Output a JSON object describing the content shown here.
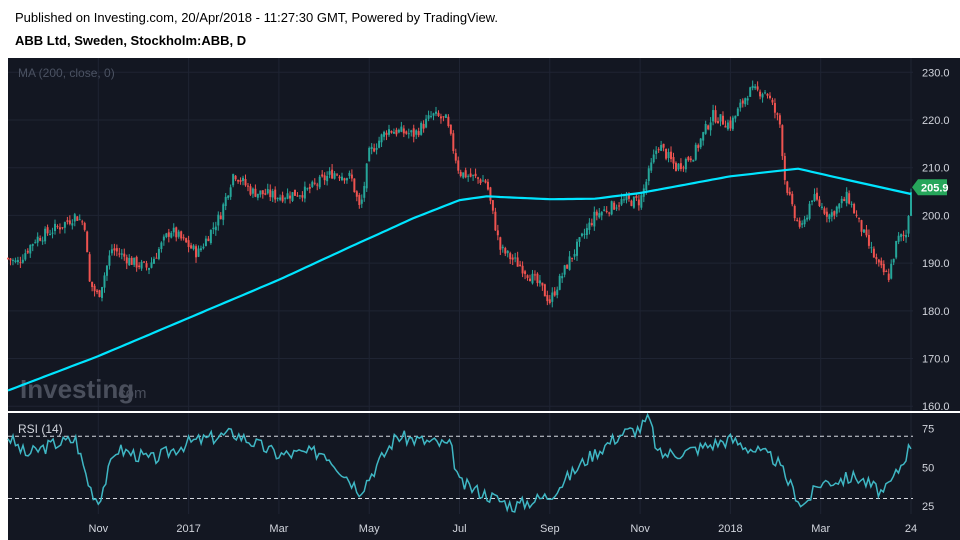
{
  "header": {
    "published": "Published on Investing.com, 20/Apr/2018 - 11:27:30 GMT, Powered by TradingView.",
    "title": "ABB Ltd, Sweden, Stockholm:ABB, D"
  },
  "watermark": {
    "brand": "Investing",
    "suffix": ".com"
  },
  "colors": {
    "background": "#131722",
    "up": "#26a69a",
    "down": "#ef5350",
    "ma": "#00e5ff",
    "rsi": "#3fb7c4",
    "last_price_bg": "#26a65b"
  },
  "chart_data": [
    {
      "type": "candlestick",
      "indicator_label": "MA (200, close, 0)",
      "y_ticks": [
        230.0,
        220.0,
        210.0,
        200.0,
        190.0,
        180.0,
        170.0,
        160.0
      ],
      "y_tick_labels": [
        "230.0",
        "220.0",
        "210.0",
        "200.0",
        "190.0",
        "180.0",
        "170.0",
        "160.0"
      ],
      "ylim": [
        159,
        233
      ],
      "last_price": 205.9,
      "last_price_label": "205.9",
      "grid": true,
      "close": [
        {
          "x": 0.0,
          "y": 191
        },
        {
          "x": 0.1,
          "y": 190
        },
        {
          "x": 0.3,
          "y": 195
        },
        {
          "x": 0.6,
          "y": 198
        },
        {
          "x": 0.75,
          "y": 200
        },
        {
          "x": 0.85,
          "y": 198
        },
        {
          "x": 0.9,
          "y": 186
        },
        {
          "x": 1.0,
          "y": 183
        },
        {
          "x": 1.15,
          "y": 193
        },
        {
          "x": 1.4,
          "y": 190
        },
        {
          "x": 1.55,
          "y": 189
        },
        {
          "x": 1.8,
          "y": 197
        },
        {
          "x": 2.1,
          "y": 192
        },
        {
          "x": 2.35,
          "y": 200
        },
        {
          "x": 2.5,
          "y": 209
        },
        {
          "x": 2.7,
          "y": 205
        },
        {
          "x": 3.0,
          "y": 204
        },
        {
          "x": 3.3,
          "y": 205
        },
        {
          "x": 3.6,
          "y": 209
        },
        {
          "x": 3.8,
          "y": 208
        },
        {
          "x": 3.9,
          "y": 201
        },
        {
          "x": 4.0,
          "y": 213
        },
        {
          "x": 4.2,
          "y": 218
        },
        {
          "x": 4.5,
          "y": 217
        },
        {
          "x": 4.7,
          "y": 221
        },
        {
          "x": 4.85,
          "y": 220
        },
        {
          "x": 5.0,
          "y": 209
        },
        {
          "x": 5.3,
          "y": 207
        },
        {
          "x": 5.35,
          "y": 202
        },
        {
          "x": 5.45,
          "y": 193
        },
        {
          "x": 5.7,
          "y": 189
        },
        {
          "x": 5.9,
          "y": 185
        },
        {
          "x": 6.0,
          "y": 182
        },
        {
          "x": 6.2,
          "y": 190
        },
        {
          "x": 6.5,
          "y": 200
        },
        {
          "x": 6.8,
          "y": 203
        },
        {
          "x": 7.0,
          "y": 203
        },
        {
          "x": 7.2,
          "y": 215
        },
        {
          "x": 7.4,
          "y": 210
        },
        {
          "x": 7.6,
          "y": 213
        },
        {
          "x": 7.8,
          "y": 221
        },
        {
          "x": 8.0,
          "y": 219
        },
        {
          "x": 8.2,
          "y": 226
        },
        {
          "x": 8.4,
          "y": 226
        },
        {
          "x": 8.55,
          "y": 219
        },
        {
          "x": 8.6,
          "y": 208
        },
        {
          "x": 8.7,
          "y": 200
        },
        {
          "x": 8.8,
          "y": 197
        },
        {
          "x": 8.9,
          "y": 204
        },
        {
          "x": 9.1,
          "y": 200
        },
        {
          "x": 9.3,
          "y": 204
        },
        {
          "x": 9.5,
          "y": 195
        },
        {
          "x": 9.65,
          "y": 189
        },
        {
          "x": 9.75,
          "y": 187
        },
        {
          "x": 9.85,
          "y": 195
        },
        {
          "x": 9.95,
          "y": 196
        },
        {
          "x": 10.0,
          "y": 206
        }
      ],
      "ma200": [
        {
          "x": 0.0,
          "y": 163.3
        },
        {
          "x": 1.0,
          "y": 170.5
        },
        {
          "x": 2.0,
          "y": 178.5
        },
        {
          "x": 3.0,
          "y": 186.5
        },
        {
          "x": 3.8,
          "y": 193.5
        },
        {
          "x": 4.5,
          "y": 199.5
        },
        {
          "x": 5.0,
          "y": 203.2
        },
        {
          "x": 5.3,
          "y": 204
        },
        {
          "x": 6.0,
          "y": 203.4
        },
        {
          "x": 6.5,
          "y": 203.5
        },
        {
          "x": 7.0,
          "y": 204.7
        },
        {
          "x": 8.0,
          "y": 208.2
        },
        {
          "x": 8.75,
          "y": 209.8
        },
        {
          "x": 9.4,
          "y": 207
        },
        {
          "x": 10.0,
          "y": 204.5
        }
      ]
    },
    {
      "type": "line",
      "indicator_label": "RSI (14)",
      "y_ticks": [
        75,
        50,
        25
      ],
      "y_tick_labels": [
        "75",
        "50",
        "25"
      ],
      "ylim": [
        20,
        85
      ],
      "reference_lines": [
        70,
        30
      ],
      "rsi": [
        {
          "x": 0.0,
          "y": 70
        },
        {
          "x": 0.2,
          "y": 58
        },
        {
          "x": 0.5,
          "y": 65
        },
        {
          "x": 0.75,
          "y": 68
        },
        {
          "x": 0.9,
          "y": 38
        },
        {
          "x": 1.0,
          "y": 28
        },
        {
          "x": 1.2,
          "y": 62
        },
        {
          "x": 1.6,
          "y": 55
        },
        {
          "x": 2.0,
          "y": 66
        },
        {
          "x": 2.5,
          "y": 72
        },
        {
          "x": 3.0,
          "y": 58
        },
        {
          "x": 3.5,
          "y": 60
        },
        {
          "x": 3.9,
          "y": 35
        },
        {
          "x": 4.3,
          "y": 70
        },
        {
          "x": 4.9,
          "y": 64
        },
        {
          "x": 5.0,
          "y": 40
        },
        {
          "x": 5.4,
          "y": 30
        },
        {
          "x": 5.6,
          "y": 25
        },
        {
          "x": 6.0,
          "y": 32
        },
        {
          "x": 6.4,
          "y": 55
        },
        {
          "x": 6.8,
          "y": 72
        },
        {
          "x": 7.0,
          "y": 75
        },
        {
          "x": 7.1,
          "y": 82
        },
        {
          "x": 7.2,
          "y": 58
        },
        {
          "x": 7.5,
          "y": 60
        },
        {
          "x": 8.0,
          "y": 68
        },
        {
          "x": 8.5,
          "y": 55
        },
        {
          "x": 8.7,
          "y": 35
        },
        {
          "x": 8.8,
          "y": 25
        },
        {
          "x": 9.0,
          "y": 40
        },
        {
          "x": 9.4,
          "y": 44
        },
        {
          "x": 9.7,
          "y": 33
        },
        {
          "x": 9.85,
          "y": 47
        },
        {
          "x": 10.0,
          "y": 65
        }
      ]
    }
  ],
  "x_axis": {
    "labels": [
      "Nov",
      "2017",
      "Mar",
      "May",
      "Jul",
      "Sep",
      "Nov",
      "2018",
      "Mar",
      "24"
    ],
    "positions": [
      1,
      2,
      3,
      4,
      5,
      6,
      7,
      8,
      9,
      10
    ]
  }
}
